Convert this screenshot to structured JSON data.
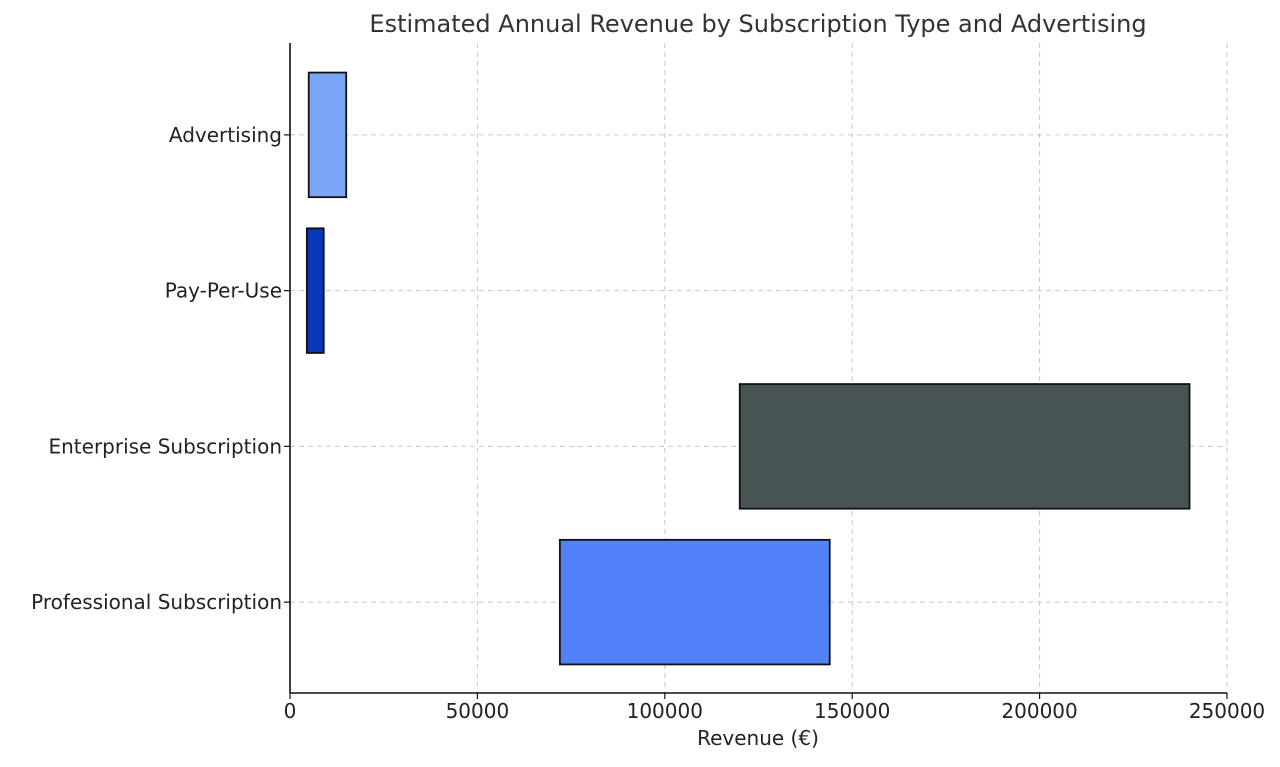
{
  "chart_data": {
    "type": "bar",
    "orientation": "horizontal",
    "title": "Estimated Annual Revenue by Subscription Type and Advertising",
    "xlabel": "Revenue (€)",
    "ylabel": "",
    "xlim": [
      0,
      250000
    ],
    "x_ticks": [
      0,
      50000,
      100000,
      150000,
      200000,
      250000
    ],
    "x_tick_labels": [
      "0",
      "50000",
      "100000",
      "150000",
      "200000",
      "250000"
    ],
    "grid": true,
    "categories": [
      "Professional Subscription",
      "Enterprise Subscription",
      "Pay-Per-Use",
      "Advertising"
    ],
    "series": [
      {
        "values": [
          {
            "start": 72000,
            "end": 144000
          },
          {
            "start": 120000,
            "end": 240000
          },
          {
            "start": 4500,
            "end": 9000
          },
          {
            "start": 5000,
            "end": 15000
          }
        ]
      }
    ],
    "colors": [
      "#5282fa",
      "#485454",
      "#0837b8",
      "#7ba6f5"
    ],
    "edge_color": "#111111"
  }
}
